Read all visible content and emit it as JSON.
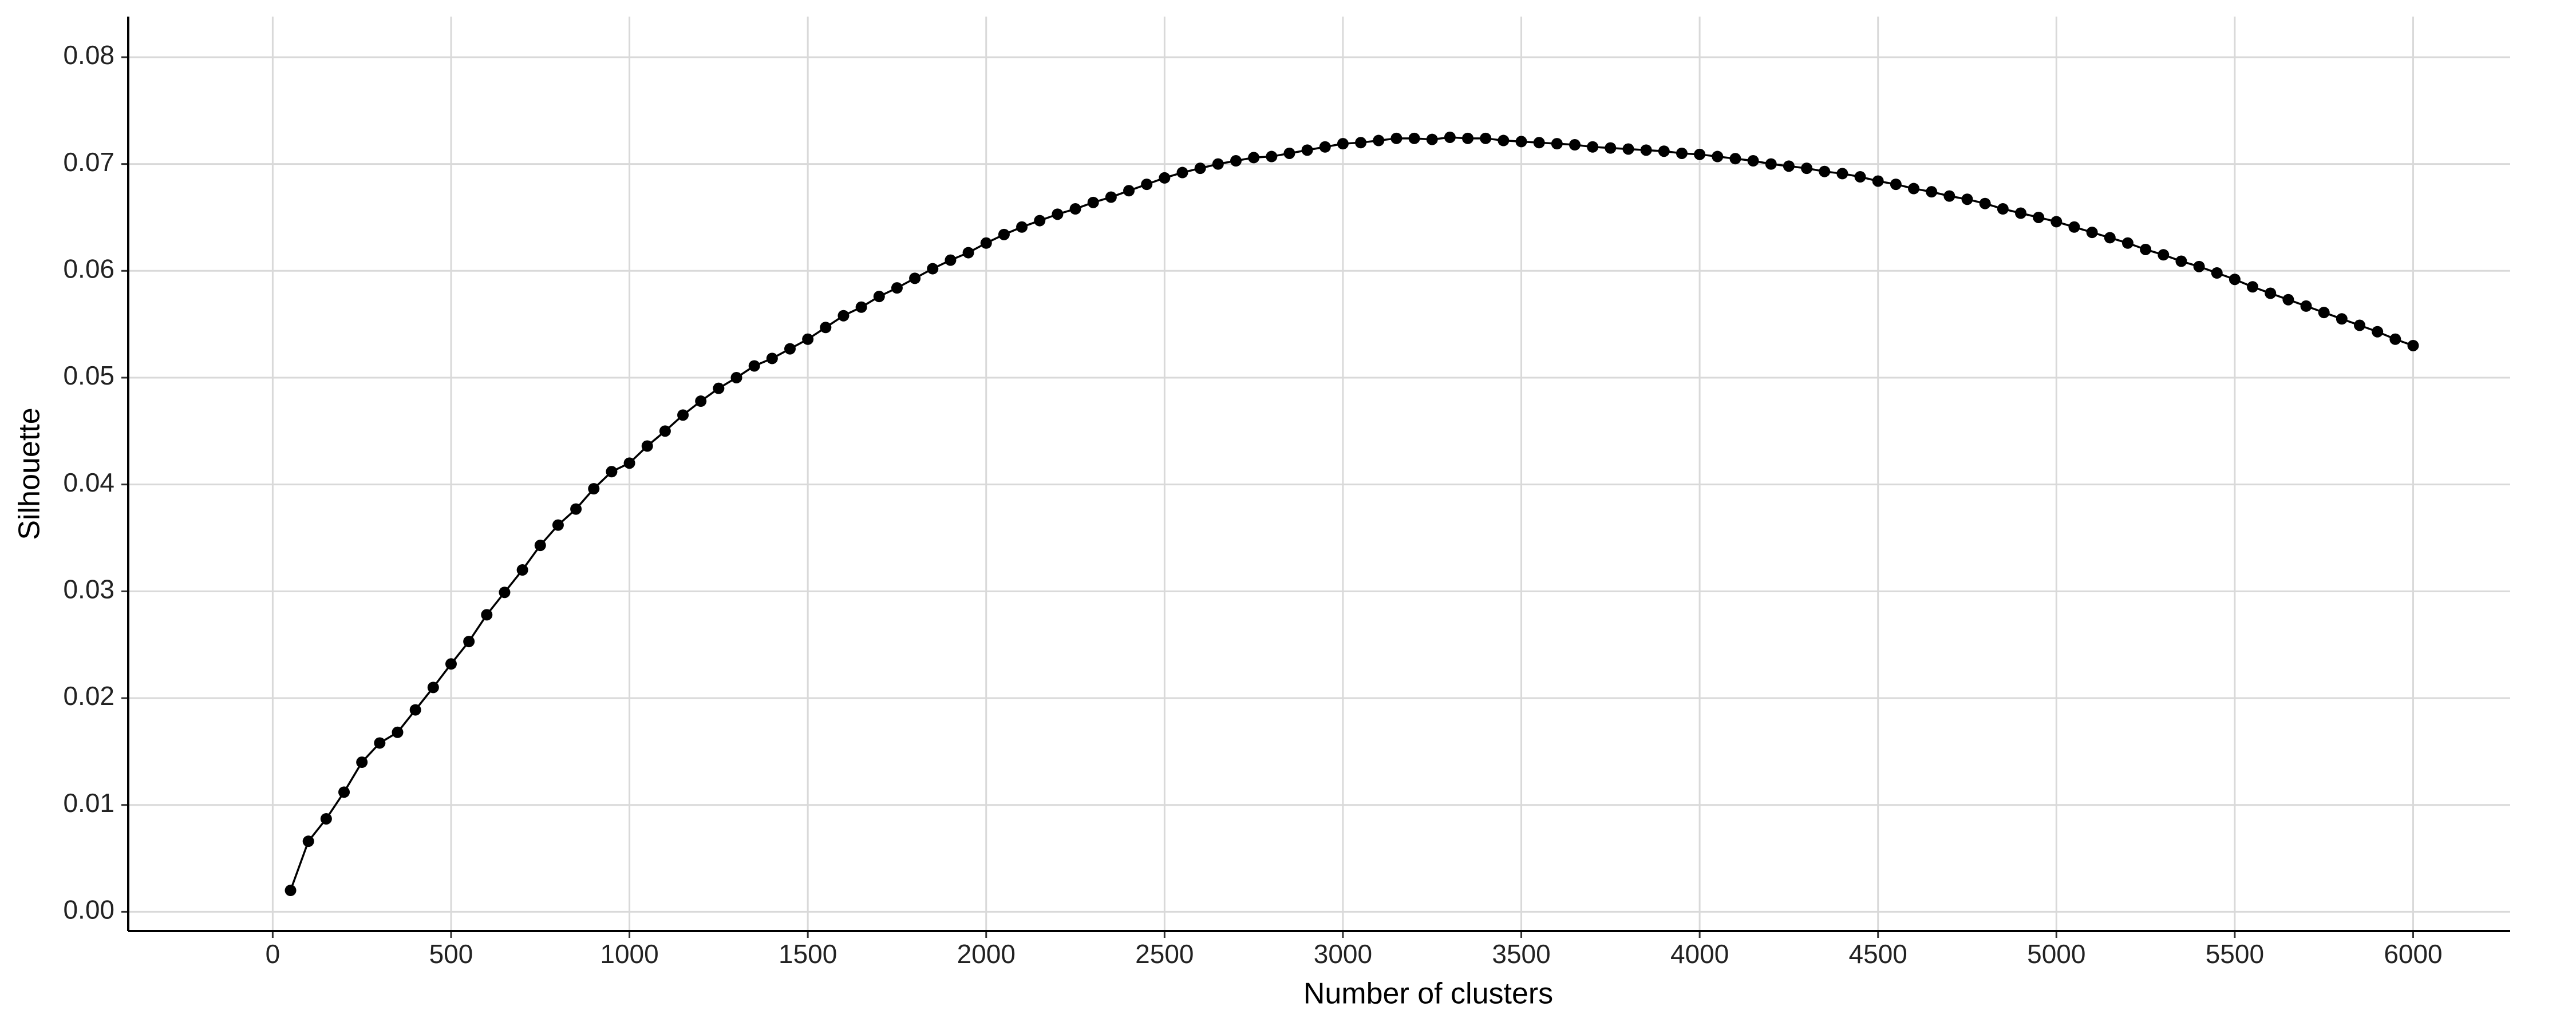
{
  "chart_data": {
    "type": "line",
    "x_label": "Number of clusters",
    "y_label": "Silhouette",
    "x": [
      50,
      100,
      150,
      200,
      250,
      300,
      350,
      400,
      450,
      500,
      550,
      600,
      650,
      700,
      750,
      800,
      850,
      900,
      950,
      1000,
      1050,
      1100,
      1150,
      1200,
      1250,
      1300,
      1350,
      1400,
      1450,
      1500,
      1550,
      1600,
      1650,
      1700,
      1750,
      1800,
      1850,
      1900,
      1950,
      2000,
      2050,
      2100,
      2150,
      2200,
      2250,
      2300,
      2350,
      2400,
      2450,
      2500,
      2550,
      2600,
      2650,
      2700,
      2750,
      2800,
      2850,
      2900,
      2950,
      3000,
      3050,
      3100,
      3150,
      3200,
      3250,
      3300,
      3350,
      3400,
      3450,
      3500,
      3550,
      3600,
      3650,
      3700,
      3750,
      3800,
      3850,
      3900,
      3950,
      4000,
      4050,
      4100,
      4150,
      4200,
      4250,
      4300,
      4350,
      4400,
      4450,
      4500,
      4550,
      4600,
      4650,
      4700,
      4750,
      4800,
      4850,
      4900,
      4950,
      5000,
      5050,
      5100,
      5150,
      5200,
      5250,
      5300,
      5350,
      5400,
      5450,
      5500,
      5550,
      5600,
      5650,
      5700,
      5750,
      5800,
      5850,
      5900,
      5950,
      6000
    ],
    "series": [
      {
        "color": "#000000",
        "values": [
          0.002,
          0.0066,
          0.0087,
          0.0112,
          0.014,
          0.0158,
          0.0168,
          0.0189,
          0.021,
          0.0232,
          0.0253,
          0.0278,
          0.0299,
          0.032,
          0.0343,
          0.0362,
          0.0377,
          0.0396,
          0.0412,
          0.042,
          0.0436,
          0.045,
          0.0465,
          0.0478,
          0.049,
          0.05,
          0.0511,
          0.0518,
          0.0527,
          0.0536,
          0.0547,
          0.0558,
          0.0566,
          0.0576,
          0.0584,
          0.0593,
          0.0602,
          0.061,
          0.0617,
          0.0626,
          0.0634,
          0.0641,
          0.0647,
          0.0653,
          0.0658,
          0.0664,
          0.0669,
          0.0675,
          0.0681,
          0.0687,
          0.0692,
          0.0696,
          0.07,
          0.0703,
          0.0706,
          0.0707,
          0.071,
          0.0713,
          0.0716,
          0.0719,
          0.072,
          0.0722,
          0.0724,
          0.0724,
          0.0723,
          0.0725,
          0.0724,
          0.0724,
          0.0722,
          0.0721,
          0.072,
          0.0719,
          0.0718,
          0.0716,
          0.0715,
          0.0714,
          0.0713,
          0.0712,
          0.071,
          0.0709,
          0.0707,
          0.0705,
          0.0703,
          0.07,
          0.0698,
          0.0696,
          0.0693,
          0.0691,
          0.0688,
          0.0684,
          0.0681,
          0.0677,
          0.0674,
          0.067,
          0.0667,
          0.0663,
          0.0658,
          0.0654,
          0.065,
          0.0646,
          0.0641,
          0.0636,
          0.0631,
          0.0626,
          0.062,
          0.0615,
          0.0609,
          0.0604,
          0.0598,
          0.0592,
          0.0585,
          0.0579,
          0.0573,
          0.0567,
          0.0561,
          0.0555,
          0.0549,
          0.0543,
          0.0536,
          0.053
        ]
      }
    ],
    "xlim": [
      -405,
      6272
    ],
    "ylim": [
      -0.0018,
      0.0838
    ],
    "xticks": [
      0,
      500,
      1000,
      1500,
      2000,
      2500,
      3000,
      3500,
      4000,
      4500,
      5000,
      5500,
      6000
    ],
    "yticks": [
      {
        "value": 0,
        "label": "0.00"
      },
      0.01,
      0.02,
      0.03,
      0.04,
      0.05,
      0.06,
      0.07,
      0.08
    ],
    "grid": true,
    "markers": true
  }
}
